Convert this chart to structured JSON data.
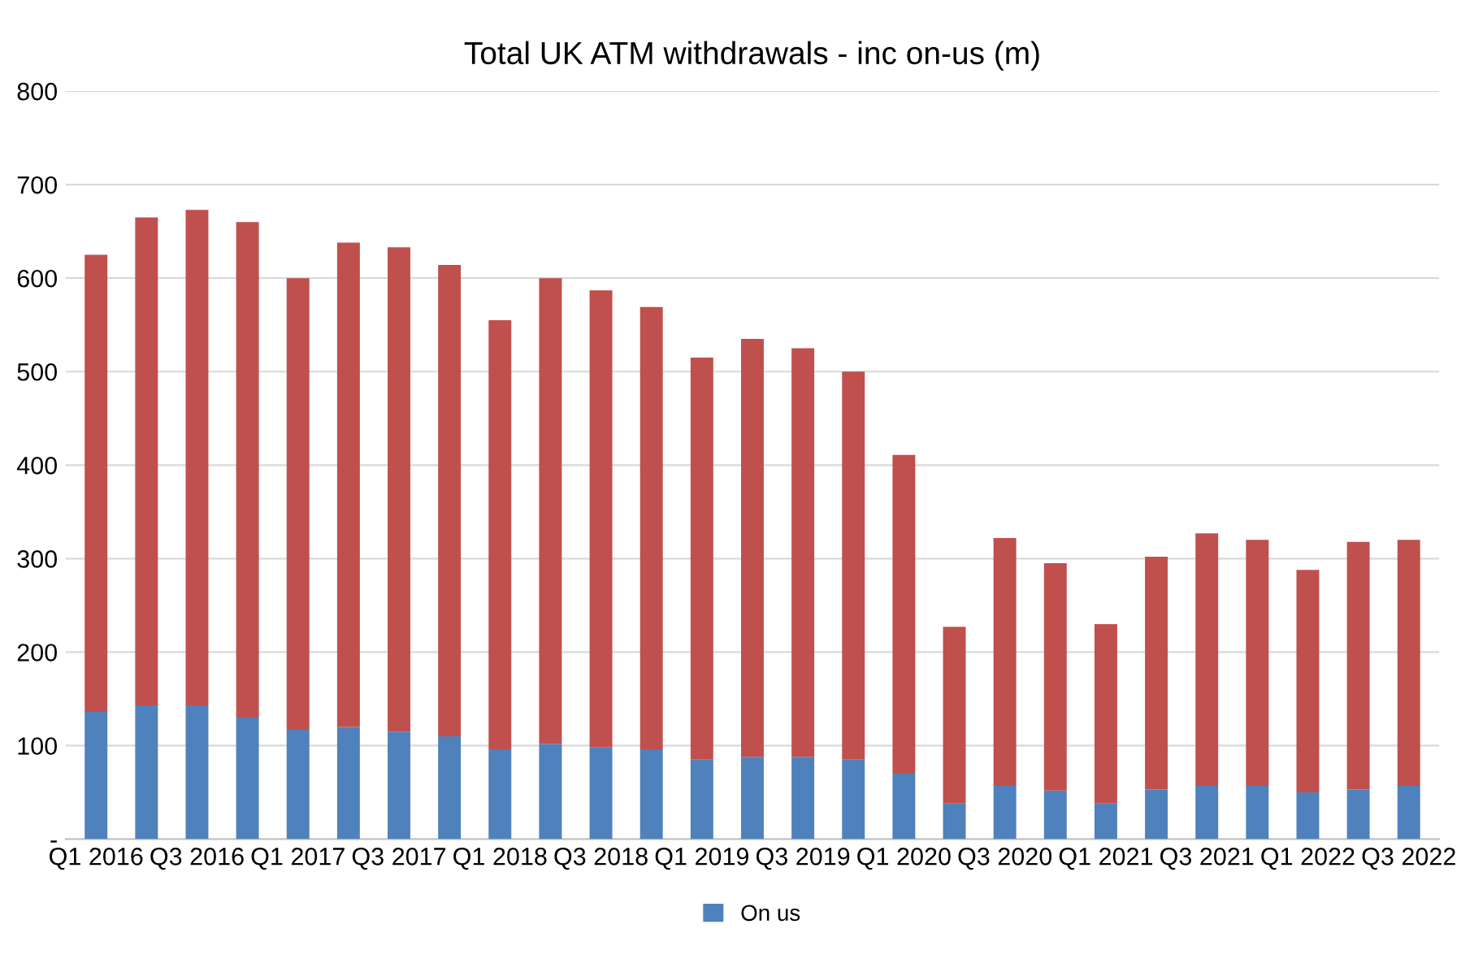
{
  "chart_data": {
    "type": "bar",
    "title": "Total UK ATM withdrawals - inc on-us (m)",
    "categories": [
      "Q1 2016",
      null,
      "Q3 2016",
      null,
      "Q1 2017",
      null,
      "Q3 2017",
      null,
      "Q1 2018",
      null,
      "Q3 2018",
      null,
      "Q1 2019",
      null,
      "Q3 2019",
      null,
      "Q1 2020",
      null,
      "Q3 2020",
      null,
      "Q1 2021",
      null,
      "Q3 2021",
      null,
      "Q1 2022",
      null,
      "Q3 2022"
    ],
    "stacked": true,
    "series": [
      {
        "name": "On us",
        "color": "#4f81bd",
        "values": [
          136,
          143,
          143,
          130,
          117,
          120,
          115,
          110,
          96,
          102,
          98,
          96,
          85,
          88,
          88,
          85,
          70,
          38,
          57,
          52,
          38,
          53,
          57,
          57,
          50,
          53,
          57
        ]
      },
      {
        "color": "#c0504d",
        "values": [
          489,
          522,
          530,
          530,
          483,
          518,
          518,
          504,
          459,
          498,
          489,
          473,
          430,
          447,
          437,
          415,
          341,
          189,
          265,
          243,
          192,
          249,
          270,
          263,
          238,
          265,
          263
        ]
      }
    ],
    "ylim": [
      0,
      800
    ],
    "yticks": [
      {
        "value": 0,
        "label": "-"
      },
      100,
      200,
      300,
      400,
      500,
      600,
      700,
      800
    ],
    "grid": "y",
    "legend": "bottom"
  }
}
